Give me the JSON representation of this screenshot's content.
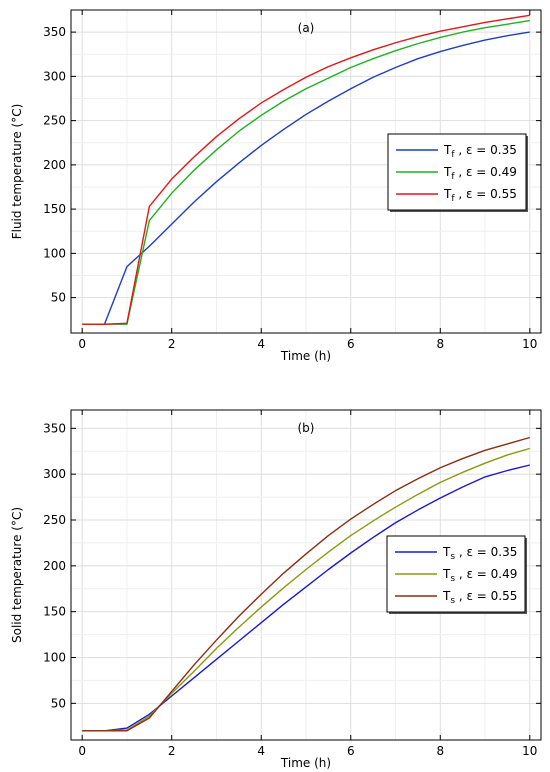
{
  "chart_data": [
    {
      "type": "line",
      "panel_label": "(a)",
      "xlabel": "Time (h)",
      "ylabel": "Fluid temperature (°C)",
      "xlim": [
        -0.25,
        10.25
      ],
      "ylim": [
        10,
        375
      ],
      "xticks": [
        0,
        2,
        4,
        6,
        8,
        10
      ],
      "yticks": [
        50,
        100,
        150,
        200,
        250,
        300,
        350
      ],
      "grid": true,
      "legend_position": "center-right",
      "series": [
        {
          "name": "Tf , ε = 0.35",
          "legend_main": "T",
          "legend_sub": "f",
          "legend_rest": " , ε = 0.35",
          "color": "#1f3fbf",
          "x": [
            0,
            0.5,
            1,
            1.5,
            2,
            2.5,
            3,
            3.5,
            4,
            4.5,
            5,
            5.5,
            6,
            6.5,
            7,
            7.5,
            8,
            8.5,
            9,
            9.5,
            10
          ],
          "y": [
            20,
            20,
            85,
            108,
            133,
            158,
            181,
            202,
            222,
            240,
            257,
            272,
            286,
            299,
            310,
            320,
            328,
            335,
            341,
            346,
            350
          ]
        },
        {
          "name": "Tf , ε = 0.49",
          "legend_main": "T",
          "legend_sub": "f",
          "legend_rest": " , ε = 0.49",
          "color": "#20b020",
          "x": [
            0,
            0.5,
            1,
            1.5,
            2,
            2.5,
            3,
            3.5,
            4,
            4.5,
            5,
            5.5,
            6,
            6.5,
            7,
            7.5,
            8,
            8.5,
            9,
            9.5,
            10
          ],
          "y": [
            20,
            20,
            20,
            137,
            168,
            194,
            217,
            238,
            256,
            272,
            286,
            298,
            310,
            320,
            329,
            337,
            344,
            350,
            355,
            359,
            363
          ]
        },
        {
          "name": "Tf , ε = 0.55",
          "legend_main": "T",
          "legend_sub": "f",
          "legend_rest": " , ε = 0.55",
          "color": "#e01818",
          "x": [
            0,
            0.5,
            1,
            1.5,
            2,
            2.5,
            3,
            3.5,
            4,
            4.5,
            5,
            5.5,
            6,
            6.5,
            7,
            7.5,
            8,
            8.5,
            9,
            9.5,
            10
          ],
          "y": [
            20,
            20,
            21,
            153,
            184,
            209,
            232,
            252,
            270,
            285,
            299,
            311,
            321,
            330,
            338,
            345,
            351,
            356,
            361,
            365,
            369
          ]
        }
      ]
    },
    {
      "type": "line",
      "panel_label": "(b)",
      "xlabel": "Time (h)",
      "ylabel": "Solid temperature (°C)",
      "xlim": [
        -0.25,
        10.25
      ],
      "ylim": [
        10,
        370
      ],
      "xticks": [
        0,
        2,
        4,
        6,
        8,
        10
      ],
      "yticks": [
        50,
        100,
        150,
        200,
        250,
        300,
        350
      ],
      "grid": true,
      "legend_position": "center-right",
      "series": [
        {
          "name": "Ts , ε = 0.35",
          "legend_main": "T",
          "legend_sub": "s",
          "legend_rest": " , ε = 0.35",
          "color": "#1a1ad0",
          "x": [
            0,
            0.5,
            1,
            1.5,
            2,
            2.5,
            3,
            3.5,
            4,
            4.5,
            5,
            5.5,
            6,
            6.5,
            7,
            7.5,
            8,
            8.5,
            9,
            9.5,
            10
          ],
          "y": [
            20,
            20,
            23,
            38,
            58,
            78,
            98,
            118,
            138,
            158,
            177,
            196,
            214,
            231,
            247,
            261,
            274,
            286,
            297,
            304,
            310
          ]
        },
        {
          "name": "Ts , ε = 0.49",
          "legend_main": "T",
          "legend_sub": "s",
          "legend_rest": " , ε = 0.49",
          "color": "#8a9a10",
          "x": [
            0,
            0.5,
            1,
            1.5,
            2,
            2.5,
            3,
            3.5,
            4,
            4.5,
            5,
            5.5,
            6,
            6.5,
            7,
            7.5,
            8,
            8.5,
            9,
            9.5,
            10
          ],
          "y": [
            20,
            20,
            21,
            36,
            61,
            85,
            110,
            133,
            155,
            176,
            196,
            215,
            233,
            249,
            264,
            278,
            291,
            302,
            312,
            321,
            328
          ]
        },
        {
          "name": "Ts , ε = 0.55",
          "legend_main": "T",
          "legend_sub": "s",
          "legend_rest": " , ε = 0.55",
          "color": "#8b2e12",
          "x": [
            0,
            0.5,
            1,
            1.5,
            2,
            2.5,
            3,
            3.5,
            4,
            4.5,
            5,
            5.5,
            6,
            6.5,
            7,
            7.5,
            8,
            8.5,
            9,
            9.5,
            10
          ],
          "y": [
            20,
            20,
            20,
            34,
            63,
            92,
            119,
            145,
            169,
            192,
            213,
            233,
            251,
            267,
            282,
            295,
            307,
            317,
            326,
            333,
            340
          ]
        }
      ]
    }
  ]
}
